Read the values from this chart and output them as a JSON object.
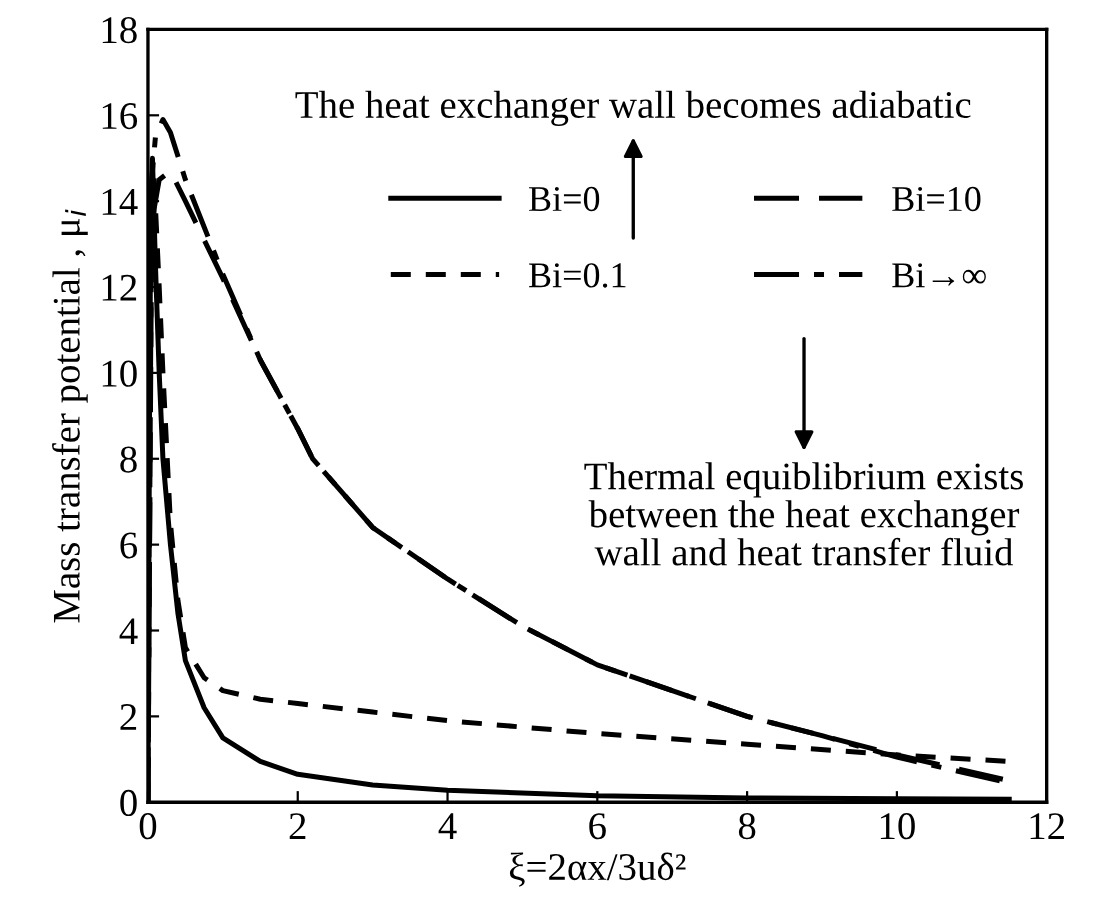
{
  "chart_data": {
    "type": "line",
    "xlabel": "ξ=2αx/3uδ²",
    "ylabel": "Mass transfer potential , μ$_{i}$",
    "xlim": [
      0,
      12
    ],
    "ylim": [
      0,
      18
    ],
    "xticks": [
      0,
      2,
      4,
      6,
      8,
      10,
      12
    ],
    "yticks": [
      0,
      2,
      4,
      6,
      8,
      10,
      12,
      14,
      16,
      18
    ],
    "grid": false,
    "legend": "top right",
    "marker": "none",
    "annotations": [
      "The heat exchanger wall becomes adiabatic",
      "Thermal equiblibrium exists\nbetween the heat exchanger\nwall and heat transfer fluid"
    ],
    "series": [
      {
        "name": "Bi=0",
        "color": "#000000",
        "line_style": "solid",
        "x": [
          0.0,
          0.03,
          0.06,
          0.1,
          0.15,
          0.2,
          0.3,
          0.4,
          0.5,
          0.75,
          1,
          1.5,
          2,
          3,
          4,
          6,
          8,
          10,
          11.5
        ],
        "values": [
          0,
          13,
          15,
          12.5,
          10,
          8,
          6,
          4.4,
          3.3,
          2.2,
          1.5,
          0.95,
          0.65,
          0.4,
          0.28,
          0.15,
          0.1,
          0.08,
          0.07
        ]
      },
      {
        "name": "Bi=0.1",
        "color": "#000000",
        "line_style": "dashed",
        "x": [
          0.0,
          0.03,
          0.08,
          0.15,
          0.2,
          0.3,
          0.4,
          0.5,
          0.75,
          1,
          1.5,
          2,
          3,
          4,
          6,
          8,
          10,
          11.5
        ],
        "values": [
          0,
          13,
          14.6,
          12,
          10,
          6.5,
          4.7,
          3.6,
          2.9,
          2.6,
          2.4,
          2.3,
          2.1,
          1.9,
          1.6,
          1.35,
          1.1,
          0.95
        ]
      },
      {
        "name": "Bi=10",
        "color": "#000000",
        "line_style": "longdash",
        "x": [
          0.0,
          0.05,
          0.15,
          0.3,
          0.5,
          1,
          1.5,
          2,
          2.2,
          3,
          4,
          5,
          6,
          7,
          8,
          9,
          10,
          11.5
        ],
        "values": [
          0,
          13.5,
          14.5,
          14.7,
          14.0,
          12.2,
          10.3,
          8.7,
          8.0,
          6.4,
          5.2,
          4.1,
          3.2,
          2.6,
          2.0,
          1.55,
          1.1,
          0.5
        ]
      },
      {
        "name": "Bi→∞",
        "color": "#000000",
        "line_style": "dashdot",
        "x": [
          0.0,
          0.05,
          0.1,
          0.2,
          0.3,
          0.5,
          1,
          1.5,
          2,
          2.2,
          3,
          4,
          5,
          6,
          7,
          8,
          9,
          10,
          11.5
        ],
        "values": [
          0,
          14.5,
          15.5,
          15.9,
          15.6,
          14.5,
          12.3,
          10.3,
          8.7,
          8.0,
          6.4,
          5.2,
          4.1,
          3.2,
          2.6,
          2.0,
          1.55,
          1.05,
          0.45
        ]
      }
    ]
  }
}
